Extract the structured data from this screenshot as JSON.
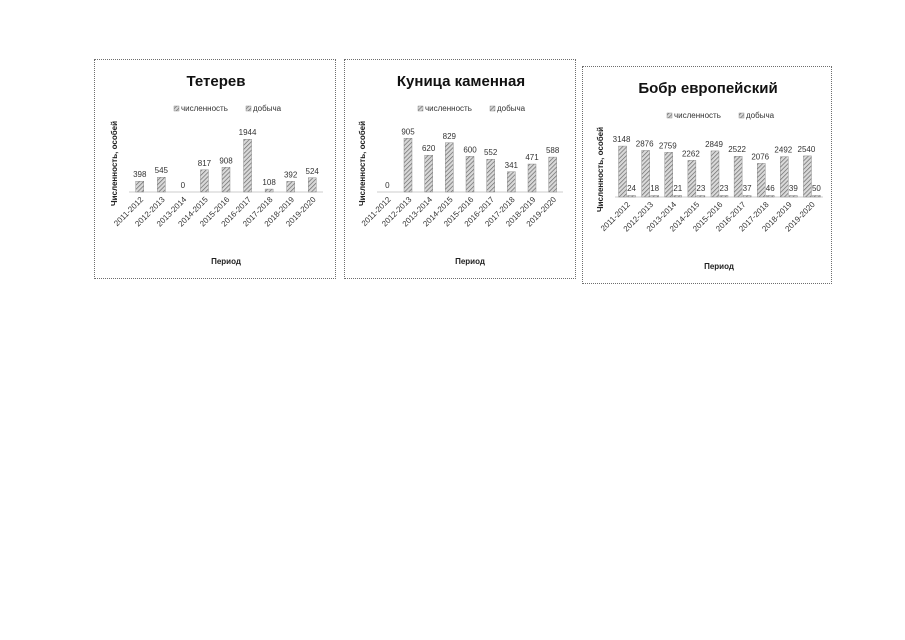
{
  "chart_data": [
    {
      "type": "bar",
      "title": "Тетерев",
      "xlabel": "Период",
      "ylabel": "Численность, особей",
      "legend": [
        "численность",
        "добыча"
      ],
      "legend_position": "top",
      "categories": [
        "2011-2012",
        "2012-2013",
        "2013-2014",
        "2014-2015",
        "2015-2016",
        "2016-2017",
        "2017-2018",
        "2018-2019",
        "2019-2020"
      ],
      "series": [
        {
          "name": "численность",
          "values": [
            398,
            545,
            0,
            817,
            908,
            1944,
            108,
            392,
            524
          ]
        }
      ],
      "ylim": [
        0,
        2100
      ],
      "grid": false
    },
    {
      "type": "bar",
      "title": "Куница каменная",
      "xlabel": "Период",
      "ylabel": "Численность, особей",
      "legend": [
        "численность",
        "добыча"
      ],
      "legend_position": "top",
      "categories": [
        "2011-2012",
        "2012-2013",
        "2013-2014",
        "2014-2015",
        "2015-2016",
        "2016-2017",
        "2017-2018",
        "2018-2019",
        "2019-2020"
      ],
      "series": [
        {
          "name": "численность",
          "values": [
            0,
            905,
            620,
            829,
            600,
            552,
            341,
            471,
            588
          ]
        }
      ],
      "ylim": [
        0,
        960
      ],
      "grid": false
    },
    {
      "type": "bar",
      "title": "Бобр европейский",
      "xlabel": "Период",
      "ylabel": "Численность, особей",
      "legend": [
        "численность",
        "добыча"
      ],
      "legend_position": "top",
      "categories": [
        "2011-2012",
        "2012-2013",
        "2013-2014",
        "2014-2015",
        "2015-2016",
        "2016-2017",
        "2017-2018",
        "2018-2019",
        "2019-2020"
      ],
      "series": [
        {
          "name": "численность",
          "values": [
            3148,
            2876,
            2759,
            2262,
            2849,
            2522,
            2076,
            2492,
            2540
          ]
        },
        {
          "name": "добыча",
          "values": [
            24,
            18,
            21,
            23,
            23,
            37,
            46,
            39,
            50
          ]
        }
      ],
      "ylim": [
        0,
        3400
      ],
      "grid": false
    }
  ]
}
